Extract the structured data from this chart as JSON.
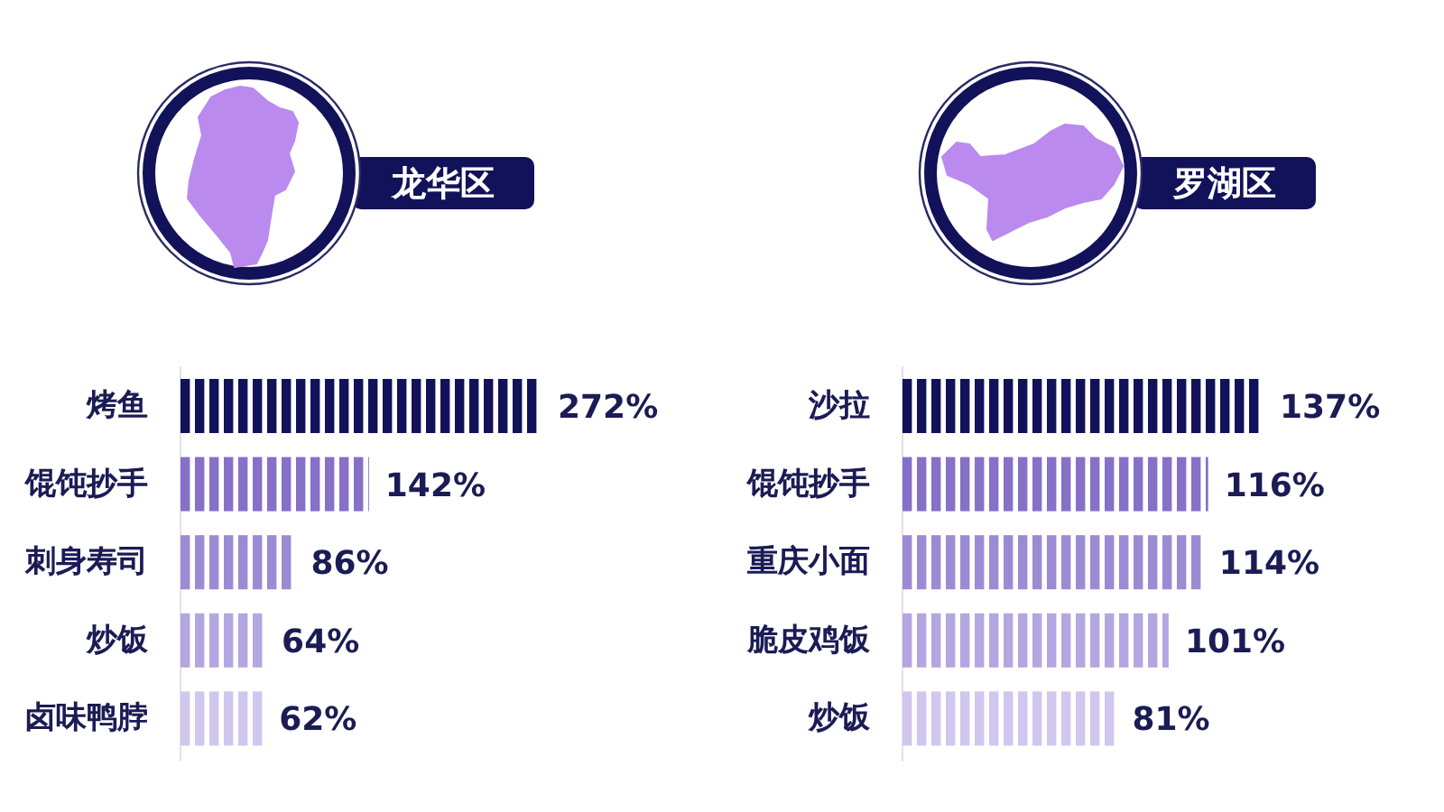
{
  "chart_data": [
    {
      "type": "bar",
      "orientation": "horizontal",
      "title": "龙华区",
      "categories": [
        "烤鱼",
        "馄饨抄手",
        "刺身寿司",
        "炒饭",
        "卤味鸭脖"
      ],
      "values": [
        272,
        142,
        86,
        64,
        62
      ],
      "value_labels": [
        "272%",
        "142%",
        "86%",
        "64%",
        "62%"
      ],
      "colors": [
        "#12125a",
        "#8670c8",
        "#9c8ad4",
        "#b4a6e0",
        "#d0c6ee"
      ],
      "tick_labels": "y"
    },
    {
      "type": "bar",
      "orientation": "horizontal",
      "title": "罗湖区",
      "categories": [
        "沙拉",
        "馄饨抄手",
        "重庆小面",
        "脆皮鸡饭",
        "炒饭"
      ],
      "values": [
        137,
        116,
        114,
        101,
        81
      ],
      "value_labels": [
        "137%",
        "116%",
        "114%",
        "101%",
        "81%"
      ],
      "colors": [
        "#12125a",
        "#8670c8",
        "#9c8ad4",
        "#b4a6e0",
        "#d0c6ee"
      ],
      "tick_labels": "y"
    }
  ]
}
